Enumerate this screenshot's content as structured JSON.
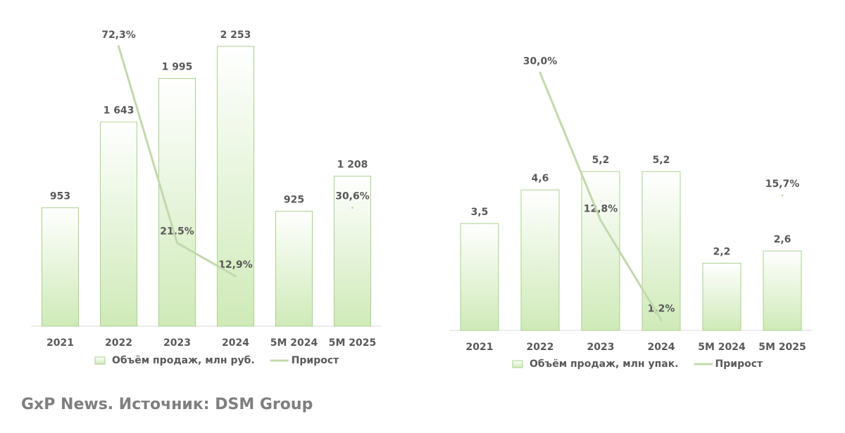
{
  "chart_data": [
    {
      "type": "bar",
      "categories": [
        "2021",
        "2022",
        "2023",
        "2024",
        "5M 2024",
        "5M 2025"
      ],
      "ylim": [
        0,
        2400
      ],
      "y2lim": [
        0,
        77
      ],
      "series": [
        {
          "name": "Объём продаж, млн руб.",
          "type": "bar",
          "color": "#d6efc2",
          "values": [
            953,
            1643,
            1995,
            2253,
            925,
            1208
          ],
          "value_labels": [
            "953",
            "1 643",
            "1 995",
            "2 253",
            "925",
            "1 208"
          ]
        },
        {
          "name": "Прирост",
          "type": "line",
          "axis": "y2",
          "color": "#c3d8ad",
          "values": [
            null,
            72.3,
            21.5,
            12.9,
            null,
            30.6
          ],
          "value_labels": [
            null,
            "72,3%",
            "21,5%",
            "12,9%",
            null,
            "30,6%"
          ]
        }
      ]
    },
    {
      "type": "bar",
      "categories": [
        "2021",
        "2022",
        "2023",
        "2024",
        "5M 2024",
        "5M 2025"
      ],
      "ylim": [
        0,
        9
      ],
      "y2lim": [
        0,
        32
      ],
      "series": [
        {
          "name": "Объём продаж, млн упак.",
          "type": "bar",
          "color": "#d6efc2",
          "values": [
            3.5,
            4.6,
            5.2,
            5.2,
            2.2,
            2.6
          ],
          "value_labels": [
            "3,5",
            "4,6",
            "5,2",
            "5,2",
            "2,2",
            "2,6"
          ]
        },
        {
          "name": "Прирост",
          "type": "line",
          "axis": "y2",
          "color": "#c3d8ad",
          "values": [
            null,
            30.0,
            12.8,
            1.2,
            null,
            15.7
          ],
          "value_labels": [
            null,
            "30,0%",
            "12,8%",
            "1,2%",
            null,
            "15,7%"
          ]
        }
      ]
    }
  ],
  "footer": "GxP News. Источник: DSM Group"
}
